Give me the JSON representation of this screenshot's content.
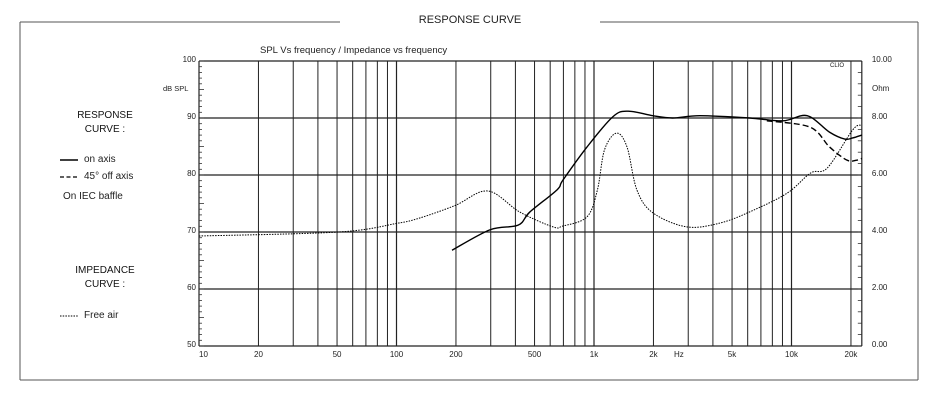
{
  "frame_title": "RESPONSE CURVE",
  "legend": {
    "response_heading_1": "RESPONSE",
    "response_heading_2": "CURVE :",
    "on_axis": "on axis",
    "off_axis": "45°  off axis",
    "baffle": "On IEC baffle",
    "impedance_heading_1": "IMPEDANCE",
    "impedance_heading_2": "CURVE :",
    "free_air": "Free air"
  },
  "chart_data": {
    "type": "line",
    "title": "SPL Vs frequency / Impedance vs frequency",
    "watermark": "CLIO",
    "xlabel": "Hz",
    "ylabel": "dB SPL",
    "y2label": "Ohm",
    "x_scale": "log",
    "xlim": [
      10,
      22700
    ],
    "ylim": [
      50,
      100
    ],
    "y2lim": [
      0,
      10
    ],
    "grid": true,
    "x_ticks": [
      "10",
      "20",
      "50",
      "100",
      "200",
      "500",
      "1k",
      "2k",
      "5k",
      "10k",
      "20k"
    ],
    "x_tick_values": [
      10,
      20,
      50,
      100,
      200,
      500,
      1000,
      2000,
      5000,
      10000,
      20000
    ],
    "y_ticks": [
      "100",
      "90",
      "80",
      "70",
      "60",
      "50"
    ],
    "y2_ticks": [
      "10.00",
      "8.00",
      "6.00",
      "4.00",
      "2.00",
      "0.00"
    ],
    "series": [
      {
        "name": "on axis",
        "axis": "left",
        "style": "solid",
        "x": [
          191,
          298,
          413,
          473,
          650,
          696,
          921,
          1244,
          1484,
          1985,
          2500,
          3440,
          6140,
          9050,
          12000,
          15600,
          18600,
          20400,
          22700
        ],
        "y": [
          66.8,
          70.4,
          71.2,
          73.5,
          77.4,
          79.1,
          84.9,
          90.2,
          91.2,
          90.4,
          90.0,
          90.4,
          90.0,
          89.5,
          90.4,
          87.5,
          86.3,
          86.5,
          87.0
        ]
      },
      {
        "name": "45° off axis",
        "axis": "left",
        "style": "dashed",
        "x": [
          7500,
          12400,
          15600,
          19100,
          21400,
          22700
        ],
        "y": [
          89.5,
          88.4,
          84.9,
          82.6,
          82.6,
          82.9
        ]
      },
      {
        "name": "Free air",
        "axis": "right",
        "style": "dotted",
        "x": [
          10,
          51,
          100,
          131,
          198,
          290,
          421,
          620,
          696,
          921,
          1040,
          1130,
          1300,
          1470,
          1650,
          1990,
          2950,
          4380,
          6440,
          9540,
          12500,
          15200,
          20400,
          22700
        ],
        "y": [
          3.86,
          4.0,
          4.3,
          4.49,
          4.93,
          5.44,
          4.7,
          4.18,
          4.21,
          4.53,
          5.47,
          6.88,
          7.47,
          6.98,
          5.47,
          4.67,
          4.18,
          4.32,
          4.77,
          5.37,
          6.07,
          6.25,
          7.58,
          7.75
        ]
      }
    ]
  }
}
